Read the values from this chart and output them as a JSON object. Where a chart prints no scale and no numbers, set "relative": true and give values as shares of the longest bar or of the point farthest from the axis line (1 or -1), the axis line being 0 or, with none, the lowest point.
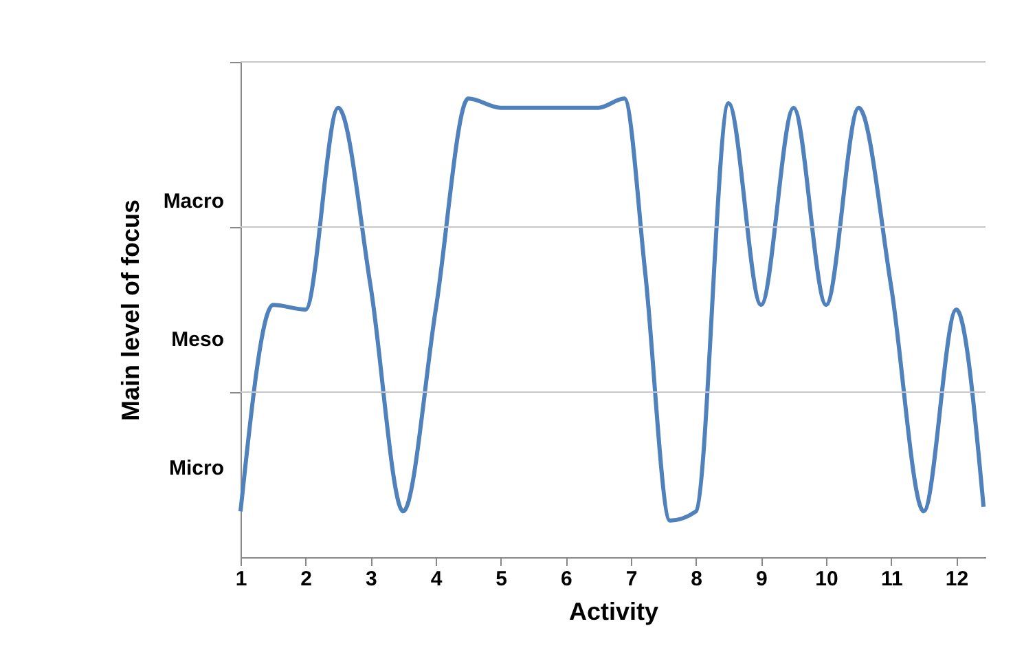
{
  "chart_data": {
    "type": "line",
    "xlabel": "Activity",
    "ylabel": "Main level of focus",
    "relative": true,
    "x": [
      1,
      1.5,
      2,
      2.5,
      3,
      3.5,
      4,
      4.5,
      5,
      6,
      6.5,
      6.9,
      7.22,
      7.6,
      8,
      8.5,
      9,
      9.5,
      10,
      10.5,
      11,
      11.5,
      12,
      12.42
    ],
    "series": [
      {
        "color": "#4f81bd",
        "values": [
          0.1,
          0.55,
          0.54,
          0.98,
          0.59,
          0.1,
          0.54,
          1,
          0.98,
          0.98,
          0.98,
          1,
          0.62,
          0.08,
          0.1,
          0.99,
          0.55,
          0.98,
          0.55,
          0.98,
          0.59,
          0.1,
          0.54,
          0.11
        ]
      }
    ],
    "xlim": [
      1,
      12.45
    ],
    "xticks": [
      1,
      2,
      3,
      4,
      5,
      6,
      7,
      8,
      9,
      10,
      11,
      12
    ],
    "annotations": [
      "Macro",
      "Meso",
      "Micro"
    ],
    "ref_lines": [
      {
        "axis": "y",
        "value": 0.36,
        "color": "#c8c8c8"
      },
      {
        "axis": "y",
        "value": 0.72,
        "color": "#c8c8c8"
      },
      {
        "axis": "y",
        "value": 1.08,
        "color": "#c8c8c8"
      }
    ],
    "marker": "none",
    "line_style": "solid",
    "legend": false
  }
}
